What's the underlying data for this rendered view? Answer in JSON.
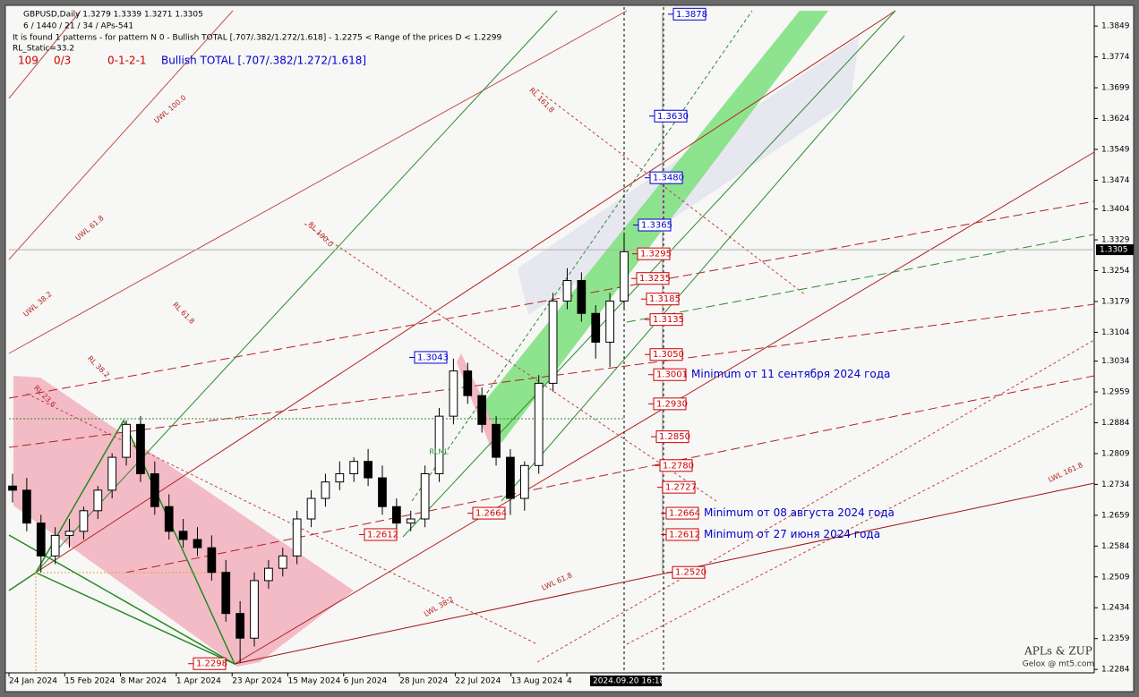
{
  "chart_data": {
    "type": "candlestick",
    "header": "GBPUSD,Daily  1.3279 1.3339 1.3271 1.3305",
    "info_lines": [
      "6 / 1440 / 21 / 34 / APs-541",
      "It is found 1 patterns  -  for pattern N 0 - Bullish TOTAL [.707/.382/1.272/1.618] - 1.2275 < Range of the prices D < 1.2299",
      "RL_Static=33.2"
    ],
    "status": [
      "109",
      "0/3",
      "0-1-2-1",
      "Bullish TOTAL [.707/.382/1.272/1.618]"
    ],
    "footer": [
      "APLs & ZUP",
      "Gelox @ mt5.com"
    ],
    "ylim": [
      1.228,
      1.3895
    ],
    "yticks": [
      1.3849,
      1.3774,
      1.3699,
      1.3624,
      1.3549,
      1.3474,
      1.3404,
      1.3329,
      1.3254,
      1.3179,
      1.3104,
      1.3034,
      1.2959,
      1.2884,
      1.2809,
      1.2734,
      1.2659,
      1.2584,
      1.2509,
      1.2434,
      1.2359,
      1.2284
    ],
    "last_price": 1.3305,
    "xlabels": [
      "24 Jan 2024",
      "15 Feb 2024",
      "8 Mar 2024",
      "1 Apr 2024",
      "23 Apr 2024",
      "15 May 2024",
      "6 Jun 2024",
      "28 Jun 2024",
      "22 Jul 2024",
      "13 Aug 2024",
      "4"
    ],
    "cursor_time": "2024.09.20 16:18",
    "colors": {
      "up": "#ffffff",
      "down": "#000000",
      "outline": "#000000"
    },
    "open": [
      1.273,
      1.272,
      1.264,
      1.256,
      1.261,
      1.262,
      1.267,
      1.272,
      1.28,
      1.288,
      1.276,
      1.268,
      1.262,
      1.26,
      1.258,
      1.252,
      1.242,
      1.236,
      1.25,
      1.253,
      1.256,
      1.265,
      1.27,
      1.274,
      1.276,
      1.279,
      1.275,
      1.268,
      1.264,
      1.265,
      1.276,
      1.29,
      1.301,
      1.295,
      1.288,
      1.28,
      1.27,
      1.278,
      1.298,
      1.318,
      1.323,
      1.315,
      1.308,
      1.318
    ],
    "high": [
      1.276,
      1.275,
      1.266,
      1.263,
      1.265,
      1.268,
      1.273,
      1.281,
      1.289,
      1.29,
      1.279,
      1.271,
      1.265,
      1.263,
      1.261,
      1.255,
      1.245,
      1.252,
      1.255,
      1.258,
      1.267,
      1.272,
      1.276,
      1.279,
      1.28,
      1.282,
      1.278,
      1.27,
      1.267,
      1.278,
      1.292,
      1.304,
      1.303,
      1.297,
      1.29,
      1.282,
      1.279,
      1.3,
      1.32,
      1.326,
      1.325,
      1.317,
      1.32,
      1.334
    ],
    "low": [
      1.269,
      1.262,
      1.252,
      1.254,
      1.258,
      1.26,
      1.265,
      1.27,
      1.278,
      1.274,
      1.266,
      1.26,
      1.258,
      1.256,
      1.25,
      1.24,
      1.23,
      1.234,
      1.248,
      1.251,
      1.254,
      1.263,
      1.268,
      1.272,
      1.274,
      1.273,
      1.266,
      1.261,
      1.262,
      1.263,
      1.274,
      1.288,
      1.293,
      1.286,
      1.278,
      1.266,
      1.267,
      1.276,
      1.296,
      1.316,
      1.313,
      1.304,
      1.302,
      1.316
    ],
    "close": [
      1.272,
      1.264,
      1.256,
      1.261,
      1.262,
      1.267,
      1.272,
      1.28,
      1.288,
      1.276,
      1.268,
      1.262,
      1.26,
      1.258,
      1.252,
      1.242,
      1.236,
      1.25,
      1.253,
      1.256,
      1.265,
      1.27,
      1.274,
      1.276,
      1.279,
      1.275,
      1.268,
      1.264,
      1.265,
      1.276,
      1.29,
      1.301,
      1.295,
      1.288,
      1.28,
      1.27,
      1.278,
      1.298,
      1.318,
      1.323,
      1.315,
      1.308,
      1.318,
      1.33
    ],
    "levels": [
      {
        "price": 1.3878,
        "color": "#0000cc"
      },
      {
        "price": 1.363,
        "label": "1.3630",
        "color": "#0000cc"
      },
      {
        "price": 1.348,
        "label": "1.3480",
        "color": "#0000cc"
      },
      {
        "price": 1.3365,
        "color": "#0000cc"
      },
      {
        "price": 1.3043,
        "color": "#0000cc"
      },
      {
        "price": 1.3295,
        "color": "#cc0000"
      },
      {
        "price": 1.3235,
        "color": "#cc0000"
      },
      {
        "price": 1.3185,
        "color": "#cc0000"
      },
      {
        "price": 1.3135,
        "color": "#cc0000"
      },
      {
        "price": 1.305,
        "label": "1.3050",
        "color": "#cc0000"
      },
      {
        "price": 1.3001,
        "color": "#cc0000",
        "note": "Minimum от 11 сентября 2024 года"
      },
      {
        "price": 1.293,
        "label": "1.2930",
        "color": "#cc0000"
      },
      {
        "price": 1.285,
        "label": "1.2850",
        "color": "#cc0000"
      },
      {
        "price": 1.278,
        "label": "1.2780",
        "color": "#cc0000"
      },
      {
        "price": 1.2727,
        "color": "#cc0000"
      },
      {
        "price": 1.2664,
        "color": "#cc0000",
        "note": "Minimum от 08 августа 2024 года"
      },
      {
        "price": 1.2612,
        "color": "#cc0000",
        "note": "Minimum от 27 июня 2024 года"
      },
      {
        "price": 1.252,
        "label": "1.2520",
        "color": "#cc0000"
      },
      {
        "price": 1.2612,
        "color": "#cc0000"
      },
      {
        "price": 1.2664,
        "color": "#cc0000"
      },
      {
        "price": 1.2298,
        "color": "#cc0000"
      }
    ],
    "fib_labels": [
      "UWL 100.0",
      "UWL 61.8",
      "UWL 38.2",
      "RL 161.8",
      "RL 100.0",
      "RL 61.8",
      "RL 38.2",
      "RL 23.6",
      "LWL 161.8",
      "LWL 61.8",
      "LWL 38.2",
      "RLML"
    ]
  }
}
